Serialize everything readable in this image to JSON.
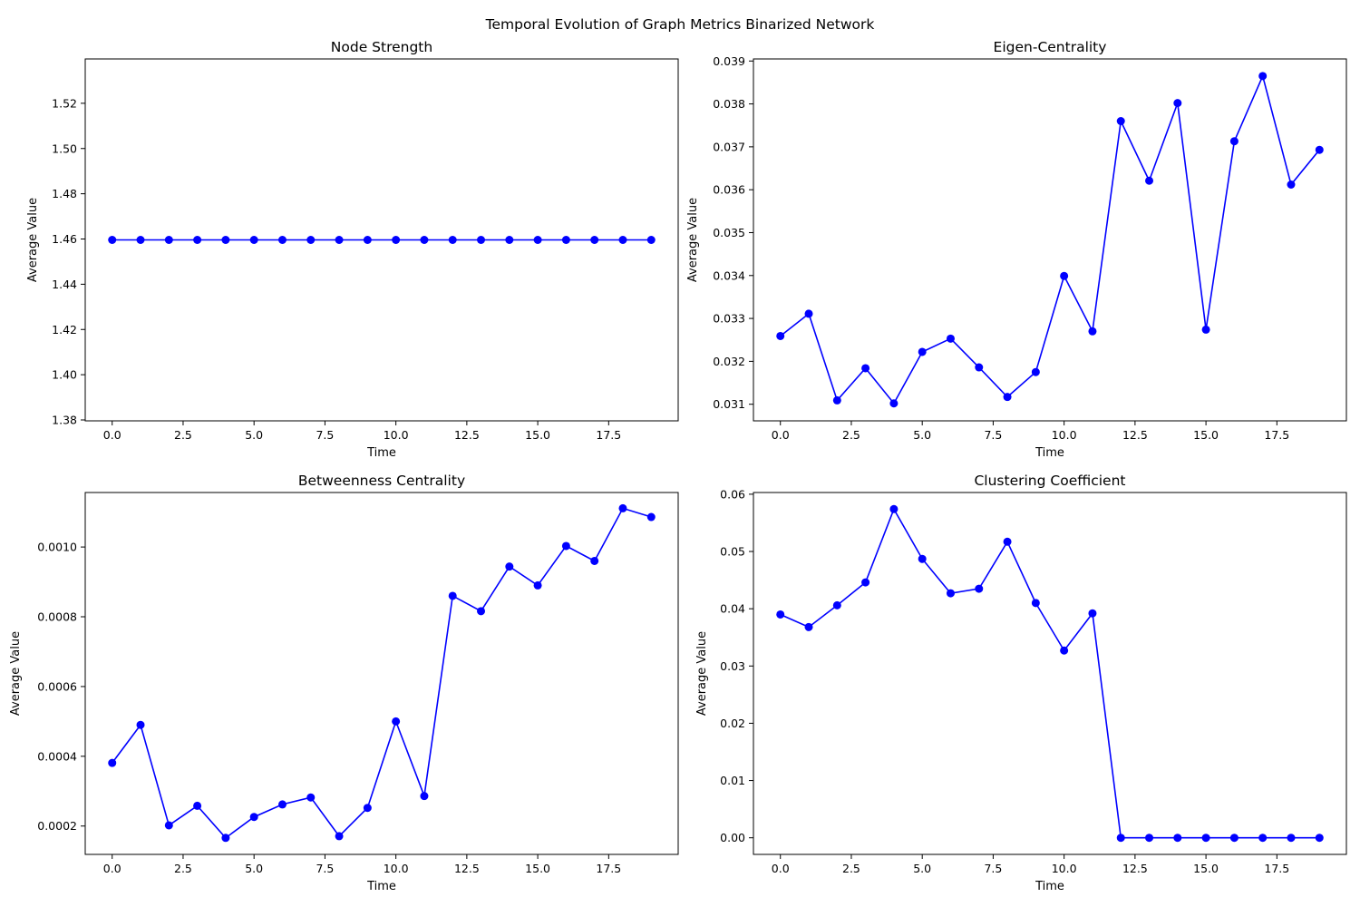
{
  "figure": {
    "suptitle": "Temporal Evolution of Graph Metrics Binarized Network"
  },
  "colors": {
    "series": "#0000ff",
    "axes": "#000000",
    "background": "#ffffff"
  },
  "chart_data": [
    {
      "type": "line",
      "title": "Node Strength",
      "xlabel": "Time",
      "ylabel": "Average Value",
      "xlim": [
        -0.95,
        19.95
      ],
      "ylim": [
        1.3796,
        1.5396
      ],
      "xticks": [
        0.0,
        2.5,
        5.0,
        7.5,
        10.0,
        12.5,
        15.0,
        17.5
      ],
      "xtick_labels": [
        "0.0",
        "2.5",
        "5.0",
        "7.5",
        "10.0",
        "12.5",
        "15.0",
        "17.5"
      ],
      "yticks": [
        1.38,
        1.4,
        1.42,
        1.44,
        1.46,
        1.48,
        1.5,
        1.52
      ],
      "ytick_labels": [
        "1.38",
        "1.40",
        "1.42",
        "1.44",
        "1.46",
        "1.48",
        "1.50",
        "1.52"
      ],
      "grid": false,
      "marker": "circle",
      "x": [
        0,
        1,
        2,
        3,
        4,
        5,
        6,
        7,
        8,
        9,
        10,
        11,
        12,
        13,
        14,
        15,
        16,
        17,
        18,
        19
      ],
      "y": [
        1.4596,
        1.4596,
        1.4596,
        1.4596,
        1.4596,
        1.4596,
        1.4596,
        1.4596,
        1.4596,
        1.4596,
        1.4596,
        1.4596,
        1.4596,
        1.4596,
        1.4596,
        1.4596,
        1.4596,
        1.4596,
        1.4596,
        1.4596
      ]
    },
    {
      "type": "line",
      "title": "Eigen-Centrality",
      "xlabel": "Time",
      "ylabel": "Average Value",
      "xlim": [
        -0.95,
        19.95
      ],
      "ylim": [
        0.030613,
        0.039048
      ],
      "xticks": [
        0.0,
        2.5,
        5.0,
        7.5,
        10.0,
        12.5,
        15.0,
        17.5
      ],
      "xtick_labels": [
        "0.0",
        "2.5",
        "5.0",
        "7.5",
        "10.0",
        "12.5",
        "15.0",
        "17.5"
      ],
      "yticks": [
        0.031,
        0.032,
        0.033,
        0.034,
        0.035,
        0.036,
        0.037,
        0.038,
        0.039
      ],
      "ytick_labels": [
        "0.031",
        "0.032",
        "0.033",
        "0.034",
        "0.035",
        "0.036",
        "0.037",
        "0.038",
        "0.039"
      ],
      "grid": false,
      "marker": "circle",
      "x": [
        0,
        1,
        2,
        3,
        4,
        5,
        6,
        7,
        8,
        9,
        10,
        11,
        12,
        13,
        14,
        15,
        16,
        17,
        18,
        19
      ],
      "y": [
        0.03259,
        0.03311,
        0.03109,
        0.03184,
        0.03102,
        0.03222,
        0.03253,
        0.03186,
        0.03117,
        0.03175,
        0.03399,
        0.0327,
        0.0376,
        0.03621,
        0.03802,
        0.03274,
        0.03713,
        0.03865,
        0.03612,
        0.03693
      ]
    },
    {
      "type": "line",
      "title": "Betweenness Centrality",
      "xlabel": "Time",
      "ylabel": "Average Value",
      "xlim": [
        -0.95,
        19.95
      ],
      "ylim": [
        0.0001187,
        0.0011563
      ],
      "xticks": [
        0.0,
        2.5,
        5.0,
        7.5,
        10.0,
        12.5,
        15.0,
        17.5
      ],
      "xtick_labels": [
        "0.0",
        "2.5",
        "5.0",
        "7.5",
        "10.0",
        "12.5",
        "15.0",
        "17.5"
      ],
      "yticks": [
        0.0002,
        0.0004,
        0.0006,
        0.0008,
        0.001
      ],
      "ytick_labels": [
        "0.0002",
        "0.0004",
        "0.0006",
        "0.0008",
        "0.0010"
      ],
      "grid": false,
      "marker": "circle",
      "x": [
        0,
        1,
        2,
        3,
        4,
        5,
        6,
        7,
        8,
        9,
        10,
        11,
        12,
        13,
        14,
        15,
        16,
        17,
        18,
        19
      ],
      "y": [
        0.000381,
        0.00049,
        0.000202,
        0.000258,
        0.000166,
        0.000226,
        0.000262,
        0.000282,
        0.000171,
        0.000252,
        0.0005,
        0.000286,
        0.00086,
        0.000816,
        0.000944,
        0.00089,
        0.001003,
        0.00096,
        0.001111,
        0.001086
      ]
    },
    {
      "type": "line",
      "title": "Clustering Coefficient",
      "xlabel": "Time",
      "ylabel": "Average Value",
      "xlim": [
        -0.95,
        19.95
      ],
      "ylim": [
        -0.0029,
        0.0603
      ],
      "xticks": [
        0.0,
        2.5,
        5.0,
        7.5,
        10.0,
        12.5,
        15.0,
        17.5
      ],
      "xtick_labels": [
        "0.0",
        "2.5",
        "5.0",
        "7.5",
        "10.0",
        "12.5",
        "15.0",
        "17.5"
      ],
      "yticks": [
        0.0,
        0.01,
        0.02,
        0.03,
        0.04,
        0.05,
        0.06
      ],
      "ytick_labels": [
        "0.00",
        "0.01",
        "0.02",
        "0.03",
        "0.04",
        "0.05",
        "0.06"
      ],
      "grid": false,
      "marker": "circle",
      "x": [
        0,
        1,
        2,
        3,
        4,
        5,
        6,
        7,
        8,
        9,
        10,
        11,
        12,
        13,
        14,
        15,
        16,
        17,
        18,
        19
      ],
      "y": [
        0.039,
        0.0368,
        0.0406,
        0.0446,
        0.0574,
        0.0487,
        0.0427,
        0.0435,
        0.0517,
        0.041,
        0.0327,
        0.0392,
        0.0,
        0.0,
        0.0,
        0.0,
        0.0,
        0.0,
        0.0,
        0.0
      ]
    }
  ]
}
